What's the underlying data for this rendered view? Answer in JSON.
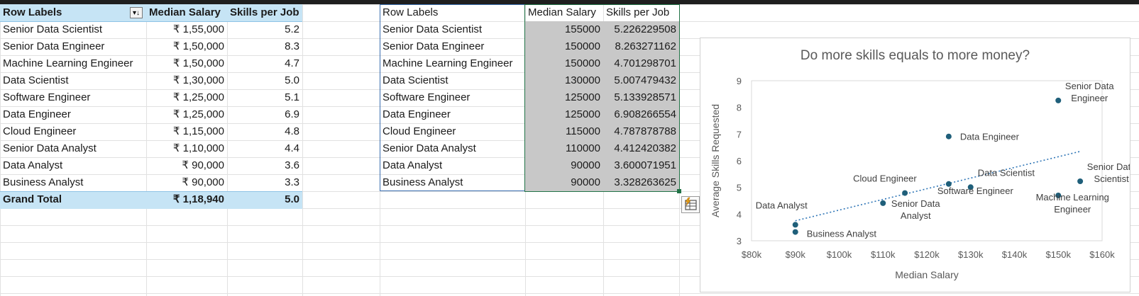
{
  "pivot": {
    "headers": [
      "Row Labels",
      "Median Salary",
      "Skills per Job"
    ],
    "rows": [
      {
        "label": "Senior Data Scientist",
        "salary": "₹ 1,55,000",
        "skills": "5.2"
      },
      {
        "label": "Senior Data Engineer",
        "salary": "₹ 1,50,000",
        "skills": "8.3"
      },
      {
        "label": "Machine Learning Engineer",
        "salary": "₹ 1,50,000",
        "skills": "4.7"
      },
      {
        "label": "Data Scientist",
        "salary": "₹ 1,30,000",
        "skills": "5.0"
      },
      {
        "label": "Software Engineer",
        "salary": "₹ 1,25,000",
        "skills": "5.1"
      },
      {
        "label": "Data Engineer",
        "salary": "₹ 1,25,000",
        "skills": "6.9"
      },
      {
        "label": "Cloud Engineer",
        "salary": "₹ 1,15,000",
        "skills": "4.8"
      },
      {
        "label": "Senior Data Analyst",
        "salary": "₹ 1,10,000",
        "skills": "4.4"
      },
      {
        "label": "Data Analyst",
        "salary": "₹ 90,000",
        "skills": "3.6"
      },
      {
        "label": "Business Analyst",
        "salary": "₹ 90,000",
        "skills": "3.3"
      }
    ],
    "total": {
      "label": "Grand Total",
      "salary": "₹ 1,18,940",
      "skills": "5.0"
    }
  },
  "table2": {
    "headers": [
      "Row Labels",
      "Median Salary",
      "Skills per Job"
    ],
    "rows": [
      {
        "label": "Senior Data Scientist",
        "salary": "155000",
        "skills": "5.226229508"
      },
      {
        "label": "Senior Data Engineer",
        "salary": "150000",
        "skills": "8.263271162"
      },
      {
        "label": "Machine Learning Engineer",
        "salary": "150000",
        "skills": "4.701298701"
      },
      {
        "label": "Data Scientist",
        "salary": "130000",
        "skills": "5.007479432"
      },
      {
        "label": "Software Engineer",
        "salary": "125000",
        "skills": "5.133928571"
      },
      {
        "label": "Data Engineer",
        "salary": "125000",
        "skills": "6.908266554"
      },
      {
        "label": "Cloud Engineer",
        "salary": "115000",
        "skills": "4.787878788"
      },
      {
        "label": "Senior Data Analyst",
        "salary": "110000",
        "skills": "4.412420382"
      },
      {
        "label": "Data Analyst",
        "salary": "90000",
        "skills": "3.600071951"
      },
      {
        "label": "Business Analyst",
        "salary": "90000",
        "skills": "3.328263625"
      }
    ]
  },
  "icons": {
    "filter": "sort-filter-icon",
    "quick_analysis": "quick-analysis-icon"
  },
  "colors": {
    "pivot_header": "#c6e4f5",
    "selection": "#c8c8c8",
    "marker": "#1f5f7a",
    "trendline": "#2e75b6"
  },
  "chart_data": {
    "type": "scatter",
    "title": "Do more skills equals to more money?",
    "xlabel": "Median Salary",
    "ylabel": "Average Skills Requested",
    "xlim": [
      80000,
      160000
    ],
    "ylim": [
      3,
      9
    ],
    "xticks": [
      "$80k",
      "$90k",
      "$100k",
      "$110k",
      "$120k",
      "$130k",
      "$140k",
      "$150k",
      "$160k"
    ],
    "yticks": [
      "3",
      "4",
      "5",
      "6",
      "7",
      "8",
      "9"
    ],
    "trendline": {
      "style": "dotted",
      "x": [
        90000,
        155000
      ],
      "y": [
        3.75,
        6.35
      ]
    },
    "points": [
      {
        "name": "Senior Data Scientist",
        "x": 155000,
        "y": 5.23
      },
      {
        "name": "Senior Data Engineer",
        "x": 150000,
        "y": 8.26
      },
      {
        "name": "Machine Learning Engineer",
        "x": 150000,
        "y": 4.7
      },
      {
        "name": "Data Scientist",
        "x": 130000,
        "y": 5.01
      },
      {
        "name": "Software Engineer",
        "x": 125000,
        "y": 5.13
      },
      {
        "name": "Data Engineer",
        "x": 125000,
        "y": 6.91
      },
      {
        "name": "Cloud Engineer",
        "x": 115000,
        "y": 4.79
      },
      {
        "name": "Senior Data Analyst",
        "x": 110000,
        "y": 4.41
      },
      {
        "name": "Data Analyst",
        "x": 90000,
        "y": 3.6
      },
      {
        "name": "Business Analyst",
        "x": 90000,
        "y": 3.33
      }
    ]
  }
}
